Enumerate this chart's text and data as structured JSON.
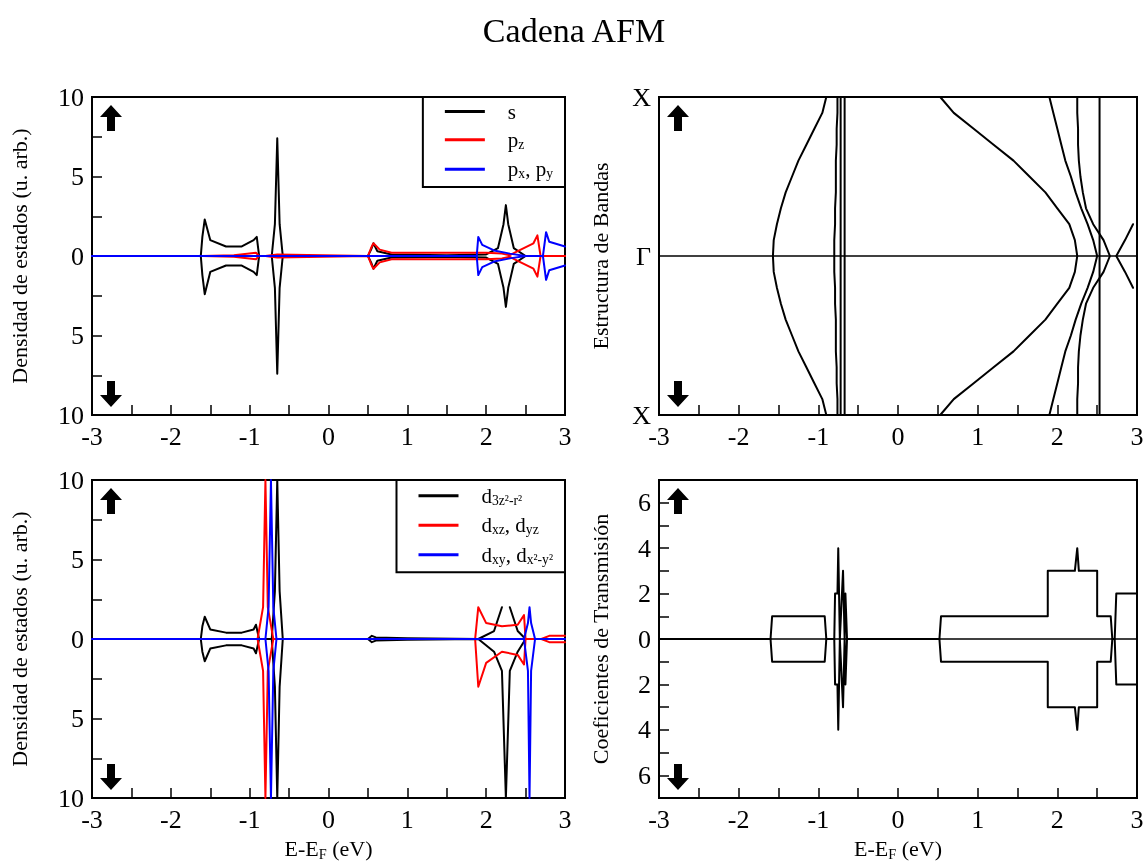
{
  "chart_data": [
    {
      "type": "line",
      "title": "Cadena AFM",
      "ylabel": "Densidad de estados (u. arb.)",
      "xlim": [
        -3,
        3
      ],
      "xticks": [
        -3,
        {
          "value": -2.5,
          "label": null
        },
        -2,
        {
          "value": -1.5,
          "label": null
        },
        -1,
        {
          "value": -0.5,
          "label": null
        },
        0,
        {
          "value": 0.5,
          "label": null
        },
        1,
        {
          "value": 1.5,
          "label": null
        },
        2,
        {
          "value": 2.5,
          "label": null
        },
        3
      ],
      "ylim": [
        -10,
        10
      ],
      "yticks": [
        {
          "value": -10,
          "label": "10"
        },
        {
          "value": -7.5,
          "label": null
        },
        {
          "value": -5,
          "label": "5"
        },
        {
          "value": -2.5,
          "label": null
        },
        0,
        {
          "value": 2.5,
          "label": null
        },
        5,
        {
          "value": 7.5,
          "label": null
        },
        10
      ],
      "legend": "top right",
      "marker": "none",
      "series": [
        {
          "name": "s",
          "color": "#000000",
          "x": [
            -3,
            -1.62,
            -1.6,
            -1.57,
            -1.5,
            -1.3,
            -1.1,
            -0.95,
            -0.91,
            -0.88,
            -0.72,
            -0.68,
            -0.65,
            -0.62,
            -0.58,
            0.5,
            0.54,
            0.57,
            0.62,
            0.8,
            1.5,
            2.0,
            2.15,
            2.22,
            2.25,
            2.28,
            2.35,
            2.5,
            3
          ],
          "values": [
            0,
            0,
            1.2,
            2.3,
            1.0,
            0.6,
            0.6,
            1.0,
            1.2,
            0,
            0,
            2,
            7.4,
            2,
            0,
            0,
            0.4,
            0.8,
            0.3,
            0.1,
            0.05,
            0.1,
            0.5,
            2,
            3.2,
            2,
            0.5,
            0,
            0
          ]
        },
        {
          "color": "#000000",
          "x": [
            -3,
            -1.62,
            -1.6,
            -1.57,
            -1.5,
            -1.3,
            -1.1,
            -0.95,
            -0.91,
            -0.88,
            -0.72,
            -0.68,
            -0.65,
            -0.62,
            -0.58,
            0.5,
            0.54,
            0.57,
            0.62,
            0.8,
            1.5,
            2.0,
            2.15,
            2.22,
            2.25,
            2.28,
            2.35,
            2.5,
            3
          ],
          "values": [
            0,
            0,
            -1.2,
            -2.4,
            -1.0,
            -0.6,
            -0.6,
            -1.0,
            -1.2,
            0,
            0,
            -2,
            -7.4,
            -2,
            0,
            0,
            -0.4,
            -0.8,
            -0.3,
            -0.1,
            -0.05,
            -0.1,
            -0.5,
            -2,
            -3.2,
            -2,
            -0.5,
            0,
            0
          ]
        },
        {
          "name": "p$_{z}$",
          "color": "#ff0000",
          "x": [
            -3,
            -1.6,
            -1.2,
            -0.92,
            -0.88,
            -0.8,
            -0.65,
            0.5,
            0.54,
            0.57,
            0.65,
            0.8,
            1.5,
            2.0,
            2.2,
            2.3,
            2.4,
            2.6,
            2.65,
            2.69,
            3
          ],
          "values": [
            0,
            0,
            0.05,
            0.2,
            0,
            0,
            0.1,
            0,
            0.5,
            0.8,
            0.4,
            0.2,
            0.2,
            0.2,
            0.15,
            0.05,
            0.3,
            0.8,
            1.3,
            0,
            0
          ]
        },
        {
          "color": "#ff0000",
          "x": [
            -3,
            -1.6,
            -1.2,
            -0.92,
            -0.88,
            -0.8,
            -0.65,
            0.5,
            0.54,
            0.57,
            0.65,
            0.8,
            1.5,
            2.0,
            2.2,
            2.3,
            2.4,
            2.6,
            2.65,
            2.69,
            3
          ],
          "values": [
            0,
            0,
            -0.05,
            -0.2,
            0,
            0,
            -0.1,
            0,
            -0.5,
            -0.8,
            -0.4,
            -0.2,
            -0.2,
            -0.2,
            -0.15,
            -0.05,
            -0.3,
            -0.8,
            -1.3,
            0,
            0
          ]
        },
        {
          "name": "p$_{x}$, p$_{y}$",
          "color": "#0000ff",
          "x": [
            -3,
            1.88,
            1.9,
            1.95,
            2.1,
            2.3,
            2.5,
            2.72,
            2.76,
            2.8,
            3
          ],
          "values": [
            0,
            0,
            1.2,
            0.7,
            0.35,
            0.15,
            0,
            0,
            1.5,
            0.9,
            0.6
          ]
        },
        {
          "color": "#0000ff",
          "x": [
            -3,
            1.88,
            1.9,
            1.95,
            2.1,
            2.3,
            2.5,
            2.72,
            2.76,
            2.8,
            3
          ],
          "values": [
            0,
            0,
            -1.2,
            -0.7,
            -0.35,
            -0.15,
            0,
            0,
            -1.5,
            -0.9,
            -0.6
          ]
        }
      ]
    },
    {
      "type": "line",
      "orientation": "horizontal",
      "ylabel": "Estructura de Bandas",
      "xlim": [
        -3,
        3
      ],
      "xticks": [
        -3,
        {
          "value": -2.5,
          "label": null
        },
        -2,
        {
          "value": -1.5,
          "label": null
        },
        -1,
        {
          "value": -0.5,
          "label": null
        },
        0,
        {
          "value": 0.5,
          "label": null
        },
        1,
        {
          "value": 1.5,
          "label": null
        },
        2,
        {
          "value": 2.5,
          "label": null
        },
        3
      ],
      "categories": [
        "X",
        null,
        null,
        null,
        null,
        null,
        null,
        null,
        null,
        null,
        "Γ",
        null,
        null,
        null,
        null,
        null,
        null,
        null,
        null,
        null,
        "X"
      ],
      "marker": "none",
      "ref_lines": [
        {
          "axis": "y",
          "value": "Γ"
        }
      ],
      "series": [
        {
          "color": "#000000",
          "values": [
            -0.9,
            -0.95,
            -1.05,
            -1.15,
            -1.25,
            -1.33,
            -1.41,
            -1.47,
            -1.52,
            -1.56,
            -1.57,
            -1.56,
            -1.52,
            -1.47,
            -1.41,
            -1.33,
            -1.25,
            -1.15,
            -1.05,
            -0.95,
            -0.9
          ]
        },
        {
          "color": "#000000",
          "values": [
            -0.76,
            -0.76,
            -0.77,
            -0.77,
            -0.78,
            -0.78,
            -0.78,
            -0.79,
            -0.79,
            -0.8,
            -0.8,
            -0.8,
            -0.79,
            -0.79,
            -0.78,
            -0.78,
            -0.78,
            -0.77,
            -0.77,
            -0.76,
            -0.76
          ]
        },
        {
          "color": "#000000",
          "values": [
            -0.72,
            -0.72,
            -0.72,
            -0.72,
            -0.72,
            -0.72,
            -0.72,
            -0.72,
            -0.72,
            -0.72,
            -0.72,
            -0.72,
            -0.72,
            -0.72,
            -0.72,
            -0.72,
            -0.72,
            -0.72,
            -0.72,
            -0.72,
            -0.72
          ]
        },
        {
          "color": "#000000",
          "values": [
            -0.67,
            -0.67,
            -0.67,
            -0.67,
            -0.67,
            -0.67,
            -0.67,
            -0.67,
            -0.67,
            -0.67,
            -0.67,
            -0.67,
            -0.67,
            -0.67,
            -0.67,
            -0.67,
            -0.67,
            -0.67,
            -0.67,
            -0.67,
            -0.67
          ]
        },
        {
          "color": "#000000",
          "values": [
            0.53,
            0.7,
            0.95,
            1.2,
            1.45,
            1.65,
            1.85,
            2.0,
            2.15,
            2.22,
            2.25,
            2.22,
            2.15,
            2.0,
            1.85,
            1.65,
            1.45,
            1.2,
            0.95,
            0.7,
            0.53
          ]
        },
        {
          "color": "#000000",
          "values": [
            1.9,
            1.95,
            2.0,
            2.05,
            2.1,
            2.17,
            2.23,
            2.3,
            2.38,
            2.45,
            2.5,
            2.45,
            2.38,
            2.3,
            2.23,
            2.17,
            2.1,
            2.05,
            2.0,
            1.95,
            1.9
          ]
        },
        {
          "color": "#000000",
          "values": [
            2.25,
            2.25,
            2.26,
            2.26,
            2.27,
            2.29,
            2.32,
            2.36,
            2.45,
            2.58,
            2.66,
            2.58,
            2.45,
            2.36,
            2.32,
            2.29,
            2.27,
            2.26,
            2.26,
            2.25,
            2.25
          ]
        },
        {
          "color": "#000000",
          "values": [
            2.53,
            2.53,
            2.53,
            2.53,
            2.53,
            2.53,
            2.53,
            2.53,
            2.53,
            2.53,
            2.53,
            2.53,
            2.53,
            2.53,
            2.53,
            2.53,
            2.53,
            2.53,
            2.53,
            2.53,
            2.53
          ]
        },
        {
          "color": "#000000",
          "values": [
            null,
            null,
            null,
            null,
            null,
            null,
            null,
            null,
            2.95,
            2.85,
            2.74,
            2.85,
            2.95,
            null,
            null,
            null,
            null,
            null,
            null,
            null,
            null
          ]
        }
      ]
    },
    {
      "type": "line",
      "ylabel": "Densidad de estados (u. arb.)",
      "xlabel": "E-E$_{F}$ (eV)",
      "xlim": [
        -3,
        3
      ],
      "xticks": [
        -3,
        {
          "value": -2.5,
          "label": null
        },
        -2,
        {
          "value": -1.5,
          "label": null
        },
        -1,
        {
          "value": -0.5,
          "label": null
        },
        0,
        {
          "value": 0.5,
          "label": null
        },
        1,
        {
          "value": 1.5,
          "label": null
        },
        2,
        {
          "value": 2.5,
          "label": null
        },
        3
      ],
      "ylim": [
        -10,
        10
      ],
      "yticks": [
        {
          "value": -10,
          "label": "10"
        },
        {
          "value": -7.5,
          "label": null
        },
        {
          "value": -5,
          "label": "5"
        },
        {
          "value": -2.5,
          "label": null
        },
        0,
        {
          "value": 2.5,
          "label": null
        },
        5,
        {
          "value": 7.5,
          "label": null
        },
        10
      ],
      "legend": "top right",
      "marker": "none",
      "series": [
        {
          "name": "d$_{3z²-r²}$",
          "color": "#000000",
          "x": [
            -3,
            -1.62,
            -1.6,
            -1.57,
            -1.5,
            -1.3,
            -1.1,
            -0.95,
            -0.92,
            -0.88,
            -0.72,
            -0.68,
            -0.65,
            -0.62,
            -0.58,
            0.5,
            0.55,
            0.6,
            1.0,
            1.9,
            2.1,
            2.2,
            2.25,
            2.3,
            2.4,
            2.5,
            3
          ],
          "values": [
            0,
            0,
            0.8,
            1.4,
            0.6,
            0.4,
            0.4,
            0.6,
            0.9,
            0,
            0,
            3,
            10,
            3,
            0,
            0,
            0.2,
            0.1,
            0.05,
            0,
            0.5,
            2,
            null,
            2,
            0.5,
            0,
            0
          ]
        },
        {
          "color": "#000000",
          "x": [
            -3,
            -1.62,
            -1.6,
            -1.57,
            -1.5,
            -1.3,
            -1.1,
            -0.95,
            -0.92,
            -0.88,
            -0.72,
            -0.68,
            -0.65,
            -0.62,
            -0.58,
            0.5,
            0.55,
            0.6,
            1.0,
            1.9,
            2.1,
            2.2,
            2.25,
            2.3,
            2.4,
            2.5,
            3
          ],
          "values": [
            0,
            0,
            -0.8,
            -1.4,
            -0.6,
            -0.4,
            -0.4,
            -0.6,
            -0.9,
            0,
            0,
            -3,
            -10,
            -3,
            0,
            0,
            -0.2,
            -0.1,
            -0.05,
            0,
            -0.8,
            -2,
            -10,
            -2,
            -0.8,
            0,
            0
          ]
        },
        {
          "name": "d$_{xz}$, d$_{yz}$",
          "color": "#ff0000",
          "x": [
            -3,
            -0.9,
            -0.83,
            -0.8,
            -0.77,
            -0.7,
            1.86,
            1.9,
            2.0,
            2.2,
            2.4,
            2.48,
            2.5,
            2.7,
            2.8,
            3
          ],
          "values": [
            0,
            0,
            2,
            10,
            2,
            0,
            0,
            2,
            1.0,
            0.8,
            0.9,
            1.5,
            0,
            0,
            0.2,
            0.2
          ]
        },
        {
          "color": "#ff0000",
          "x": [
            -3,
            -0.9,
            -0.83,
            -0.8,
            -0.77,
            -0.7,
            1.86,
            1.9,
            2.0,
            2.2,
            2.4,
            2.48,
            2.5,
            2.7,
            2.8,
            3
          ],
          "values": [
            0,
            0,
            -2,
            -10,
            -2,
            0,
            0,
            -3,
            -1.5,
            -0.8,
            -1.0,
            -1.6,
            0,
            0,
            -0.2,
            -0.2
          ]
        },
        {
          "name": "d$_{xy}$, d$_{x²-y²}$",
          "color": "#0000ff",
          "x": [
            -3,
            -0.8,
            -0.76,
            -0.73,
            -0.7,
            -0.66,
            2.48,
            2.53,
            2.55,
            2.57,
            2.62,
            3
          ],
          "values": [
            0,
            0,
            2,
            10,
            2,
            0,
            0,
            1,
            2,
            1,
            0,
            0
          ]
        },
        {
          "color": "#0000ff",
          "x": [
            -3,
            -0.8,
            -0.76,
            -0.73,
            -0.7,
            -0.66,
            2.48,
            2.53,
            2.55,
            2.57,
            2.62,
            3
          ],
          "values": [
            0,
            0,
            -2,
            -10,
            -2,
            0,
            0,
            -2,
            -10,
            -2,
            0,
            0
          ]
        }
      ]
    },
    {
      "type": "line",
      "ylabel": "Coeficientes de Transmisión",
      "xlabel": "E-E$_{F}$ (eV)",
      "xlim": [
        -3,
        3
      ],
      "xticks": [
        -3,
        {
          "value": -2.5,
          "label": null
        },
        -2,
        {
          "value": -1.5,
          "label": null
        },
        -1,
        {
          "value": -0.5,
          "label": null
        },
        0,
        {
          "value": 0.5,
          "label": null
        },
        1,
        {
          "value": 1.5,
          "label": null
        },
        2,
        {
          "value": 2.5,
          "label": null
        },
        3
      ],
      "ylim": [
        -7,
        7
      ],
      "yticks": [
        {
          "value": -6,
          "label": "6"
        },
        {
          "value": -5,
          "label": null
        },
        {
          "value": -4,
          "label": "4"
        },
        {
          "value": -3,
          "label": null
        },
        {
          "value": -2,
          "label": "2"
        },
        {
          "value": -1,
          "label": null
        },
        0,
        {
          "value": 1,
          "label": null
        },
        2,
        {
          "value": 3,
          "label": null
        },
        4,
        {
          "value": 5,
          "label": null
        },
        6
      ],
      "marker": "none",
      "ref_lines": [
        {
          "axis": "y",
          "value": 0
        }
      ],
      "series": [
        {
          "color": "#000000",
          "x": [
            -3,
            -1.6,
            -1.58,
            -0.92,
            -0.9,
            -0.8,
            -0.79,
            -0.76,
            -0.75,
            -0.73,
            -0.69,
            -0.67,
            -0.66,
            -0.64,
            0.52,
            0.54,
            1.88,
            1.88,
            2.22,
            2.25,
            2.27,
            2.5,
            2.5,
            2.67,
            2.69,
            2.72,
            2.74,
            3
          ],
          "values": [
            0,
            0,
            1,
            1,
            0,
            0,
            2,
            2,
            4,
            0,
            3,
            0,
            2,
            0,
            0,
            1,
            1,
            3,
            3,
            4,
            3,
            3,
            1,
            1,
            0,
            0,
            2,
            2
          ]
        },
        {
          "color": "#000000",
          "x": [
            -3,
            -1.6,
            -1.58,
            -0.92,
            -0.9,
            -0.8,
            -0.79,
            -0.76,
            -0.75,
            -0.73,
            -0.69,
            -0.67,
            -0.66,
            -0.64,
            0.52,
            0.54,
            1.88,
            1.88,
            2.22,
            2.25,
            2.27,
            2.5,
            2.5,
            2.67,
            2.69,
            2.72,
            2.74,
            3
          ],
          "values": [
            0,
            0,
            -1,
            -1,
            0,
            0,
            -2,
            -2,
            -4,
            0,
            -3,
            0,
            -2,
            0,
            0,
            -1,
            -1,
            -3,
            -3,
            -4,
            -3,
            -3,
            -1,
            -1,
            0,
            0,
            -2,
            -2
          ]
        }
      ]
    }
  ]
}
